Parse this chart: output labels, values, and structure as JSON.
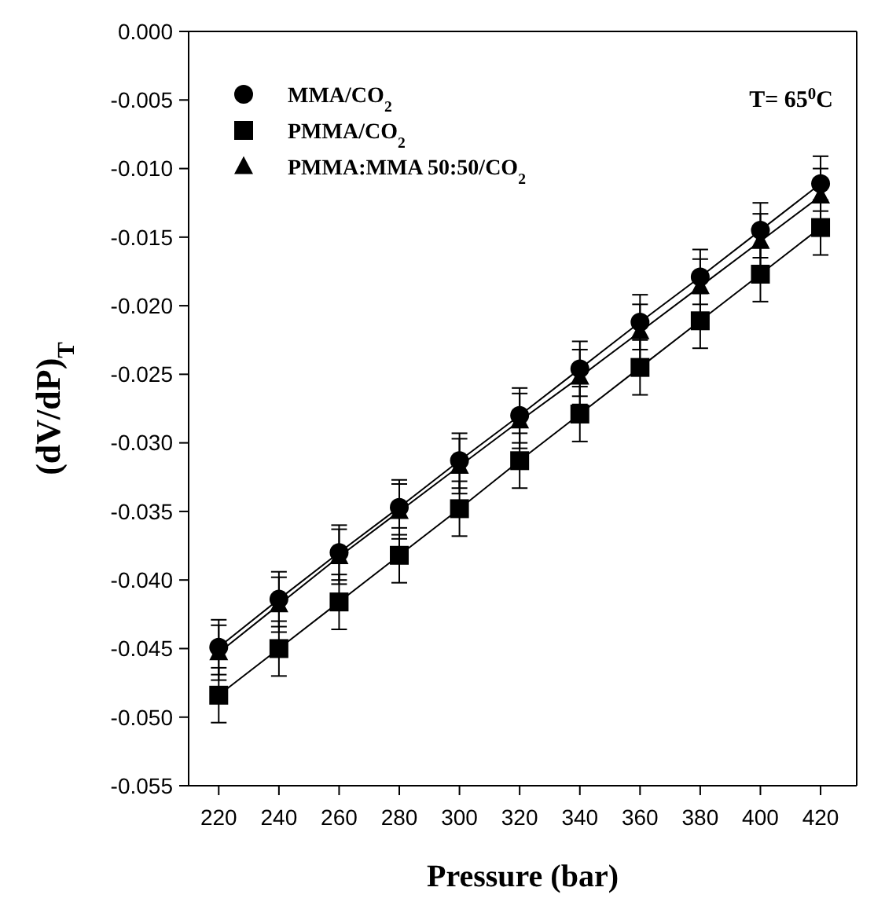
{
  "chart_data": {
    "type": "line",
    "xlabel": "Pressure (bar)",
    "ylabel": "(dV/dP)$_{T}$",
    "x": [
      220,
      240,
      260,
      280,
      300,
      320,
      340,
      360,
      380,
      400,
      420
    ],
    "xlim": [
      210,
      432
    ],
    "xticks": [
      220,
      240,
      260,
      280,
      300,
      320,
      340,
      360,
      380,
      400,
      420
    ],
    "ylim": [
      -0.055,
      0
    ],
    "yticks": [
      {
        "value": -0.055,
        "label": "-0.055"
      },
      {
        "value": -0.05,
        "label": "-0.050"
      },
      {
        "value": -0.045,
        "label": "-0.045"
      },
      {
        "value": -0.04,
        "label": "-0.040"
      },
      {
        "value": -0.035,
        "label": "-0.035"
      },
      {
        "value": -0.03,
        "label": "-0.030"
      },
      {
        "value": -0.025,
        "label": "-0.025"
      },
      {
        "value": -0.02,
        "label": "-0.020"
      },
      {
        "value": -0.015,
        "label": "-0.015"
      },
      {
        "value": -0.01,
        "label": "-0.010"
      },
      {
        "value": -0.005,
        "label": "-0.005"
      },
      {
        "value": 0,
        "label": "0.000"
      }
    ],
    "legend": "top left",
    "annotations": [
      "T= 65$^{0}$C"
    ],
    "series": [
      {
        "name": "MMA/CO$_{2}$",
        "color": "#000000",
        "marker": "circle",
        "values": [
          -0.0449,
          -0.0414,
          -0.038,
          -0.0347,
          -0.0313,
          -0.028,
          -0.0246,
          -0.0212,
          -0.0179,
          -0.0145,
          -0.0111
        ],
        "errors": [
          0.002,
          0.002,
          0.002,
          0.002,
          0.002,
          0.002,
          0.002,
          0.002,
          0.002,
          0.002,
          0.002
        ]
      },
      {
        "name": "PMMA/CO$_{2}$",
        "color": "#000000",
        "marker": "square",
        "values": [
          -0.0484,
          -0.045,
          -0.0416,
          -0.0382,
          -0.0348,
          -0.0313,
          -0.0279,
          -0.0245,
          -0.0211,
          -0.0177,
          -0.0143
        ],
        "errors": [
          0.002,
          0.002,
          0.002,
          0.002,
          0.002,
          0.002,
          0.002,
          0.002,
          0.002,
          0.002,
          0.002
        ]
      },
      {
        "name": "PMMA:MMA 50:50/CO$_{2}$",
        "color": "#000000",
        "marker": "triangle",
        "values": [
          -0.0453,
          -0.0418,
          -0.0383,
          -0.035,
          -0.0317,
          -0.0284,
          -0.0252,
          -0.0219,
          -0.0186,
          -0.0153,
          -0.012
        ],
        "errors": [
          0.002,
          0.002,
          0.002,
          0.002,
          0.002,
          0.002,
          0.002,
          0.002,
          0.002,
          0.002,
          0.002
        ]
      }
    ]
  }
}
